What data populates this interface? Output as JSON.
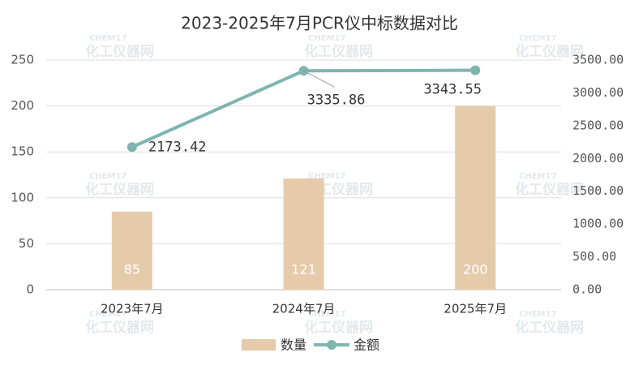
{
  "chart_data": {
    "type": "bar-line",
    "title": "2023-2025年7月PCR仪中标数据对比",
    "categories": [
      "2023年7月",
      "2024年7月",
      "2025年7月"
    ],
    "series": [
      {
        "name": "数量",
        "color": "#e6cbab",
        "values": [
          85,
          121,
          200
        ],
        "type": "bar"
      },
      {
        "name": "金额",
        "color": "#7fb5b0",
        "values": [
          2173.42,
          3335.86,
          3343.55
        ],
        "type": "line",
        "axis": "y2"
      }
    ],
    "ylim": [
      0,
      250
    ],
    "yticks": [
      0,
      50,
      100,
      150,
      200,
      250
    ],
    "y2lim": [
      0,
      3500
    ],
    "y2ticks": [
      {
        "value": 0,
        "label": "0.00"
      },
      {
        "value": 500,
        "label": "500.00"
      },
      {
        "value": 1000,
        "label": "1000.00"
      },
      {
        "value": 1500,
        "label": "1500.00"
      },
      {
        "value": 2000,
        "label": "2000.00"
      },
      {
        "value": 2500,
        "label": "2500.00"
      },
      {
        "value": 3000,
        "label": "3000.00"
      },
      {
        "value": 3500,
        "label": "3500.00"
      }
    ],
    "grid": true,
    "legend": "bottom",
    "watermark": [
      "CHEM17",
      "化工仪器网"
    ]
  }
}
